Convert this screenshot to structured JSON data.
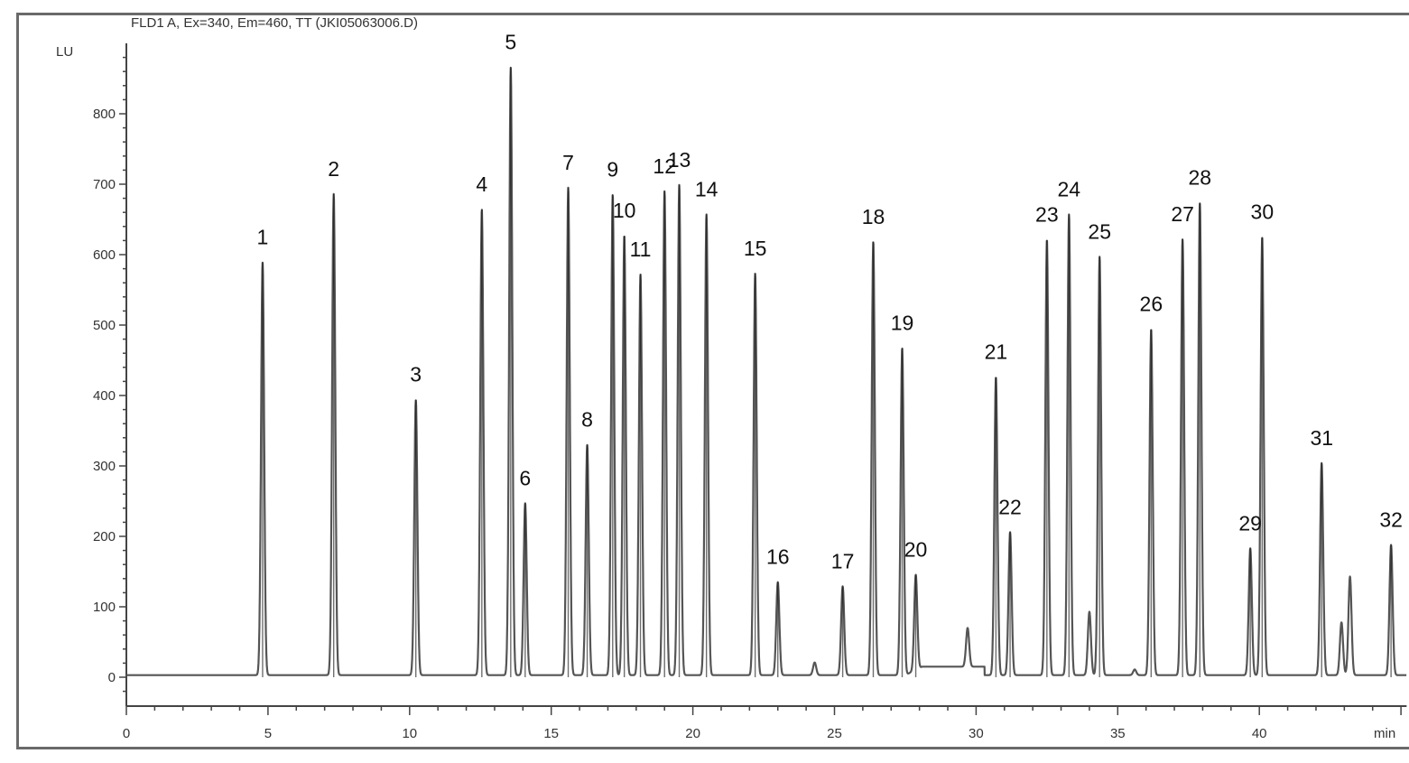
{
  "chart_data": {
    "type": "line",
    "title": "FLD1 A, Ex=340, Em=460, TT (JKI05063006.D)",
    "ylabel": "LU",
    "xlabel": "min",
    "xlim": [
      0,
      45.2
    ],
    "ylim": [
      -41,
      900
    ],
    "xticks": [
      0,
      5,
      10,
      15,
      20,
      25,
      30,
      35,
      40
    ],
    "yticks": [
      0,
      100,
      200,
      300,
      400,
      500,
      600,
      700,
      800
    ],
    "grid": false,
    "line_color": "#555555",
    "peaks": [
      {
        "label": "1",
        "rt": 4.81,
        "height": 586
      },
      {
        "label": "2",
        "rt": 7.32,
        "height": 683
      },
      {
        "label": "3",
        "rt": 10.22,
        "height": 391
      },
      {
        "label": "4",
        "rt": 12.55,
        "height": 661
      },
      {
        "label": "5",
        "rt": 13.57,
        "height": 863
      },
      {
        "label": "6",
        "rt": 14.08,
        "height": 244
      },
      {
        "label": "7",
        "rt": 15.6,
        "height": 692
      },
      {
        "label": "8",
        "rt": 16.27,
        "height": 327
      },
      {
        "label": "9",
        "rt": 17.17,
        "height": 682
      },
      {
        "label": "10",
        "rt": 17.58,
        "height": 624
      },
      {
        "label": "11",
        "rt": 18.15,
        "height": 569
      },
      {
        "label": "12",
        "rt": 19.0,
        "height": 687
      },
      {
        "label": "13",
        "rt": 19.52,
        "height": 696
      },
      {
        "label": "14",
        "rt": 20.48,
        "height": 654
      },
      {
        "label": "15",
        "rt": 22.2,
        "height": 570
      },
      {
        "label": "16",
        "rt": 23.0,
        "height": 132
      },
      {
        "label": "17",
        "rt": 25.29,
        "height": 126
      },
      {
        "label": "18",
        "rt": 26.37,
        "height": 615
      },
      {
        "label": "19",
        "rt": 27.39,
        "height": 464
      },
      {
        "label": "20",
        "rt": 27.87,
        "height": 135
      },
      {
        "label": "21",
        "rt": 30.7,
        "height": 423
      },
      {
        "label": "22",
        "rt": 31.2,
        "height": 203
      },
      {
        "label": "23",
        "rt": 32.5,
        "height": 618
      },
      {
        "label": "24",
        "rt": 33.28,
        "height": 654
      },
      {
        "label": "25",
        "rt": 34.36,
        "height": 594
      },
      {
        "label": "26",
        "rt": 36.18,
        "height": 491
      },
      {
        "label": "27",
        "rt": 37.29,
        "height": 619
      },
      {
        "label": "28",
        "rt": 37.9,
        "height": 671
      },
      {
        "label": "29",
        "rt": 39.68,
        "height": 180
      },
      {
        "label": "30",
        "rt": 40.1,
        "height": 622
      },
      {
        "label": "31",
        "rt": 42.2,
        "height": 301
      },
      {
        "label": "32",
        "rt": 44.65,
        "height": 185
      }
    ],
    "minor_peaks": [
      {
        "rt": 24.3,
        "height": 18
      },
      {
        "rt": 29.7,
        "height": 55
      },
      {
        "rt": 34.0,
        "height": 90
      },
      {
        "rt": 35.6,
        "height": 8
      },
      {
        "rt": 42.9,
        "height": 75
      },
      {
        "rt": 43.2,
        "height": 140
      }
    ]
  }
}
